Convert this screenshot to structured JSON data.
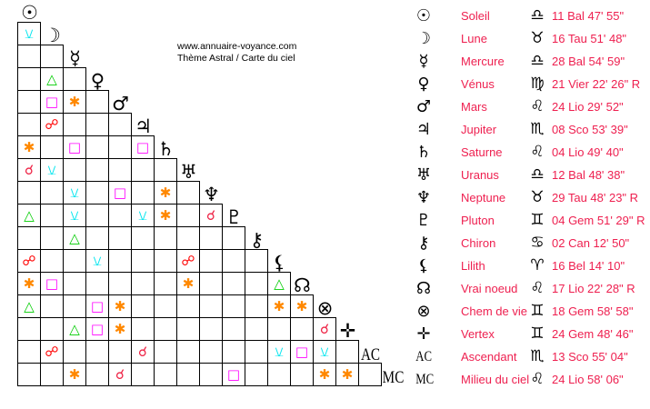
{
  "header": {
    "site": "www.annuaire-voyance.com",
    "subtitle": "Thème Astral / Carte du ciel"
  },
  "aspect_styles": {
    "semi-sextile": {
      "glyph": "⚺",
      "color": "#00e5ee"
    },
    "trine": {
      "glyph": "△",
      "color": "#00cc00"
    },
    "square": {
      "glyph": "□",
      "color": "#ff00ff"
    },
    "sextile": {
      "glyph": "✱",
      "color": "#ff8800"
    },
    "opposition": {
      "glyph": "☍",
      "color": "#ff0000"
    },
    "conjunction": {
      "glyph": "☌",
      "color": "#ee2244"
    }
  },
  "points": [
    {
      "icon": "sun-icon",
      "glyph": "☉",
      "name": "Soleil",
      "sign_icon": "libra-icon",
      "sign": "♎",
      "position": "11 Bal 47' 55\""
    },
    {
      "icon": "moon-icon",
      "glyph": "☽",
      "name": "Lune",
      "sign_icon": "taurus-icon",
      "sign": "♉",
      "position": "16 Tau 51' 48\""
    },
    {
      "icon": "mercury-icon",
      "glyph": "☿",
      "name": "Mercure",
      "sign_icon": "libra-icon",
      "sign": "♎",
      "position": "28 Bal 54' 59\""
    },
    {
      "icon": "venus-icon",
      "glyph": "♀",
      "name": "Vénus",
      "sign_icon": "virgo-icon",
      "sign": "♍",
      "position": "21 Vier 22' 26\" R"
    },
    {
      "icon": "mars-icon",
      "glyph": "♂",
      "name": "Mars",
      "sign_icon": "leo-icon",
      "sign": "♌",
      "position": "24 Lio 29' 52\""
    },
    {
      "icon": "jupiter-icon",
      "glyph": "♃",
      "name": "Jupiter",
      "sign_icon": "scorpio-icon",
      "sign": "♏",
      "position": "08 Sco 53' 39\""
    },
    {
      "icon": "saturn-icon",
      "glyph": "♄",
      "name": "Saturne",
      "sign_icon": "leo-icon",
      "sign": "♌",
      "position": "04 Lio 49' 40\""
    },
    {
      "icon": "uranus-icon",
      "glyph": "♅",
      "name": "Uranus",
      "sign_icon": "libra-icon",
      "sign": "♎",
      "position": "12 Bal 48' 38\""
    },
    {
      "icon": "neptune-icon",
      "glyph": "♆",
      "name": "Neptune",
      "sign_icon": "taurus-icon",
      "sign": "♉",
      "position": "29 Tau 48' 23\" R"
    },
    {
      "icon": "pluto-icon",
      "glyph": "♇",
      "name": "Pluton",
      "sign_icon": "gemini-icon",
      "sign": "♊",
      "position": "04 Gem 51' 29\" R"
    },
    {
      "icon": "chiron-icon",
      "glyph": "⚷",
      "name": "Chiron",
      "sign_icon": "cancer-icon",
      "sign": "♋",
      "position": "02 Can 12' 50\""
    },
    {
      "icon": "lilith-icon",
      "glyph": "⚸",
      "name": "Lilith",
      "sign_icon": "aries-icon",
      "sign": "♈",
      "position": "16 Bel 14' 10\""
    },
    {
      "icon": "north-node-icon",
      "glyph": "☊",
      "name": "Vrai noeud",
      "sign_icon": "leo-icon",
      "sign": "♌",
      "position": "17 Lio 22' 28\" R"
    },
    {
      "icon": "part-of-fortune-icon",
      "glyph": "⊗",
      "name": "Chem de vie",
      "sign_icon": "gemini-icon",
      "sign": "♊",
      "position": "18 Gem 58' 58\""
    },
    {
      "icon": "vertex-icon",
      "glyph": "✛",
      "name": "Vertex",
      "sign_icon": "gemini-icon",
      "sign": "♊",
      "position": "24 Gem 48' 46\""
    },
    {
      "icon": "ascendant-icon",
      "glyph": "AC",
      "name": "Ascendant",
      "sign_icon": "scorpio-icon",
      "sign": "♏",
      "position": "13 Sco 55' 04\""
    },
    {
      "icon": "midheaven-icon",
      "glyph": "MC",
      "name": "Milieu du ciel",
      "sign_icon": "leo-icon",
      "sign": "♌",
      "position": "24 Lio 58' 06\""
    }
  ],
  "aspects": [
    {
      "a": "Lune",
      "b": "Soleil",
      "type": "semi-sextile"
    },
    {
      "a": "Vénus",
      "b": "Lune",
      "type": "trine"
    },
    {
      "a": "Mars",
      "b": "Lune",
      "type": "square"
    },
    {
      "a": "Mars",
      "b": "Mercure",
      "type": "sextile"
    },
    {
      "a": "Jupiter",
      "b": "Lune",
      "type": "opposition"
    },
    {
      "a": "Saturne",
      "b": "Soleil",
      "type": "sextile"
    },
    {
      "a": "Saturne",
      "b": "Mercure",
      "type": "square"
    },
    {
      "a": "Saturne",
      "b": "Jupiter",
      "type": "square"
    },
    {
      "a": "Uranus",
      "b": "Soleil",
      "type": "conjunction"
    },
    {
      "a": "Uranus",
      "b": "Lune",
      "type": "semi-sextile"
    },
    {
      "a": "Neptune",
      "b": "Mercure",
      "type": "semi-sextile"
    },
    {
      "a": "Neptune",
      "b": "Mars",
      "type": "square"
    },
    {
      "a": "Neptune",
      "b": "Saturne",
      "type": "sextile"
    },
    {
      "a": "Pluton",
      "b": "Soleil",
      "type": "trine"
    },
    {
      "a": "Pluton",
      "b": "Mercure",
      "type": "semi-sextile"
    },
    {
      "a": "Pluton",
      "b": "Jupiter",
      "type": "semi-sextile"
    },
    {
      "a": "Pluton",
      "b": "Saturne",
      "type": "sextile"
    },
    {
      "a": "Pluton",
      "b": "Neptune",
      "type": "conjunction"
    },
    {
      "a": "Chiron",
      "b": "Mercure",
      "type": "trine"
    },
    {
      "a": "Lilith",
      "b": "Soleil",
      "type": "opposition"
    },
    {
      "a": "Lilith",
      "b": "Vénus",
      "type": "semi-sextile"
    },
    {
      "a": "Lilith",
      "b": "Uranus",
      "type": "opposition"
    },
    {
      "a": "Vrai noeud",
      "b": "Soleil",
      "type": "sextile"
    },
    {
      "a": "Vrai noeud",
      "b": "Lune",
      "type": "square"
    },
    {
      "a": "Vrai noeud",
      "b": "Uranus",
      "type": "sextile"
    },
    {
      "a": "Vrai noeud",
      "b": "Lilith",
      "type": "trine"
    },
    {
      "a": "Chem de vie",
      "b": "Soleil",
      "type": "trine"
    },
    {
      "a": "Chem de vie",
      "b": "Vénus",
      "type": "square"
    },
    {
      "a": "Chem de vie",
      "b": "Mars",
      "type": "sextile"
    },
    {
      "a": "Chem de vie",
      "b": "Lilith",
      "type": "sextile"
    },
    {
      "a": "Chem de vie",
      "b": "Vrai noeud",
      "type": "sextile"
    },
    {
      "a": "Vertex",
      "b": "Mercure",
      "type": "trine"
    },
    {
      "a": "Vertex",
      "b": "Vénus",
      "type": "square"
    },
    {
      "a": "Vertex",
      "b": "Mars",
      "type": "sextile"
    },
    {
      "a": "Vertex",
      "b": "Chem de vie",
      "type": "conjunction"
    },
    {
      "a": "Ascendant",
      "b": "Lune",
      "type": "opposition"
    },
    {
      "a": "Ascendant",
      "b": "Jupiter",
      "type": "conjunction"
    },
    {
      "a": "Ascendant",
      "b": "Lilith",
      "type": "semi-sextile"
    },
    {
      "a": "Ascendant",
      "b": "Vrai noeud",
      "type": "square"
    },
    {
      "a": "Ascendant",
      "b": "Chem de vie",
      "type": "semi-sextile"
    },
    {
      "a": "Milieu du ciel",
      "b": "Mercure",
      "type": "sextile"
    },
    {
      "a": "Milieu du ciel",
      "b": "Mars",
      "type": "conjunction"
    },
    {
      "a": "Milieu du ciel",
      "b": "Pluton",
      "type": "square"
    },
    {
      "a": "Milieu du ciel",
      "b": "Chem de vie",
      "type": "sextile"
    },
    {
      "a": "Milieu du ciel",
      "b": "Vertex",
      "type": "sextile"
    }
  ]
}
